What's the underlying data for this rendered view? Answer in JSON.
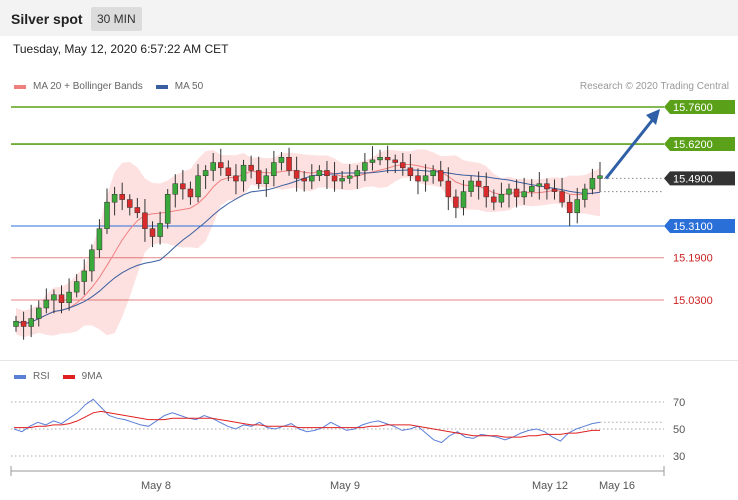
{
  "header": {
    "title": "Silver spot",
    "timeframe": "30 MIN"
  },
  "datetime": "Tuesday, May 12, 2020 6:57:22 AM CET",
  "credit": "Research © 2020 Trading Central",
  "legend_main": [
    {
      "label": "MA 20 + Bollinger Bands",
      "color": "#f08080"
    },
    {
      "label": "MA 50",
      "color": "#3a5fa0"
    }
  ],
  "legend_rsi": [
    {
      "label": "RSI",
      "color": "#5b7fd6"
    },
    {
      "label": "9MA",
      "color": "#e02020"
    }
  ],
  "chart_data": [
    {
      "type": "candlestick",
      "x_ticks": [
        "May 8",
        "May 9",
        "May 12",
        "May 16"
      ],
      "levels": [
        {
          "value": 15.76,
          "label": "15.7600",
          "style": "green-box",
          "color": "#5aa018"
        },
        {
          "value": 15.62,
          "label": "15.6200",
          "style": "green-box",
          "color": "#5aa018"
        },
        {
          "value": 15.49,
          "label": "15.4900",
          "style": "dark-box",
          "color": "#333333"
        },
        {
          "value": 15.31,
          "label": "15.3100",
          "style": "blue-box",
          "color": "#2a6fd8"
        },
        {
          "value": 15.19,
          "label": "15.1900",
          "style": "red-text",
          "color": "#cc2222"
        },
        {
          "value": 15.03,
          "label": "15.0300",
          "style": "red-text",
          "color": "#cc2222"
        }
      ],
      "candles_close_path": [
        14.95,
        14.93,
        14.96,
        15.0,
        15.03,
        15.05,
        15.02,
        15.06,
        15.1,
        15.14,
        15.22,
        15.3,
        15.4,
        15.43,
        15.41,
        15.38,
        15.36,
        15.3,
        15.27,
        15.32,
        15.43,
        15.47,
        15.45,
        15.42,
        15.5,
        15.52,
        15.55,
        15.53,
        15.5,
        15.48,
        15.54,
        15.52,
        15.47,
        15.5,
        15.55,
        15.57,
        15.52,
        15.49,
        15.48,
        15.5,
        15.52,
        15.5,
        15.48,
        15.49,
        15.5,
        15.52,
        15.55,
        15.56,
        15.57,
        15.56,
        15.55,
        15.53,
        15.5,
        15.48,
        15.5,
        15.52,
        15.48,
        15.42,
        15.38,
        15.44,
        15.48,
        15.46,
        15.42,
        15.4,
        15.43,
        15.45,
        15.42,
        15.44,
        15.46,
        15.47,
        15.45,
        15.44,
        15.4,
        15.36,
        15.41,
        15.45,
        15.49,
        15.5
      ],
      "arrow": {
        "from": 15.49,
        "to": 15.76
      }
    },
    {
      "type": "line",
      "series": [
        {
          "name": "RSI",
          "values": [
            50,
            48,
            52,
            55,
            53,
            56,
            54,
            58,
            62,
            68,
            72,
            66,
            60,
            58,
            57,
            55,
            53,
            52,
            56,
            60,
            62,
            60,
            58,
            57,
            60,
            58,
            55,
            52,
            50,
            53,
            52,
            55,
            51,
            50,
            52,
            54,
            50,
            48,
            49,
            51,
            55,
            52,
            49,
            50,
            53,
            55,
            56,
            54,
            52,
            49,
            50,
            52,
            47,
            42,
            40,
            45,
            48,
            44,
            43,
            46,
            45,
            44,
            42,
            44,
            47,
            49,
            50,
            48,
            44,
            41,
            47,
            50,
            52,
            54,
            55
          ]
        },
        {
          "name": "9MA",
          "values": [
            51,
            51,
            51,
            52,
            52,
            53,
            53,
            54,
            56,
            59,
            62,
            63,
            62,
            61,
            60,
            59,
            58,
            57,
            57,
            57,
            58,
            58,
            58,
            58,
            58,
            58,
            57,
            56,
            55,
            54,
            53,
            53,
            52,
            52,
            52,
            52,
            51,
            51,
            51,
            51,
            51,
            51,
            51,
            51,
            51,
            52,
            52,
            53,
            53,
            53,
            53,
            52,
            51,
            50,
            49,
            48,
            47,
            46,
            45,
            45,
            45,
            45,
            44,
            44,
            44,
            45,
            45,
            46,
            46,
            46,
            47,
            47,
            48,
            49,
            49
          ]
        }
      ],
      "y_ticks": [
        70,
        50,
        30
      ],
      "ylim": [
        20,
        80
      ],
      "x_ticks": [
        "May 8",
        "May 9",
        "May 12",
        "May 16"
      ]
    }
  ]
}
